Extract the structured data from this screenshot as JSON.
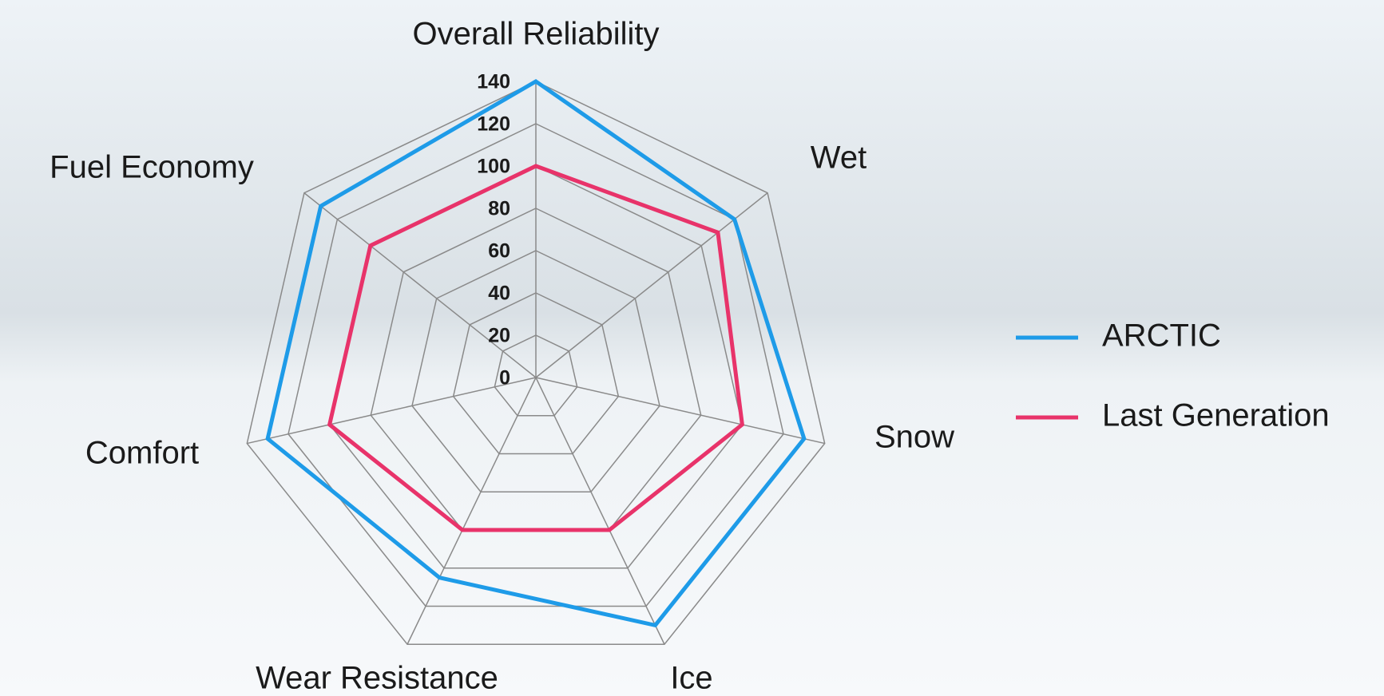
{
  "chart_data": {
    "type": "radar",
    "categories": [
      "Overall Reliability",
      "Wet",
      "Snow",
      "Ice",
      "Wear Resistance",
      "Comfort",
      "Fuel Economy"
    ],
    "series": [
      {
        "name": "ARCTIC",
        "color": "#1e9be8",
        "values": [
          140,
          120,
          130,
          130,
          105,
          130,
          130
        ]
      },
      {
        "name": "Last Generation",
        "color": "#e8336a",
        "values": [
          100,
          110,
          100,
          80,
          80,
          100,
          100
        ]
      }
    ],
    "ylim": [
      0,
      140
    ],
    "yticks": [
      0,
      20,
      40,
      60,
      80,
      100,
      120,
      140
    ],
    "grid": true,
    "legend": "right"
  }
}
